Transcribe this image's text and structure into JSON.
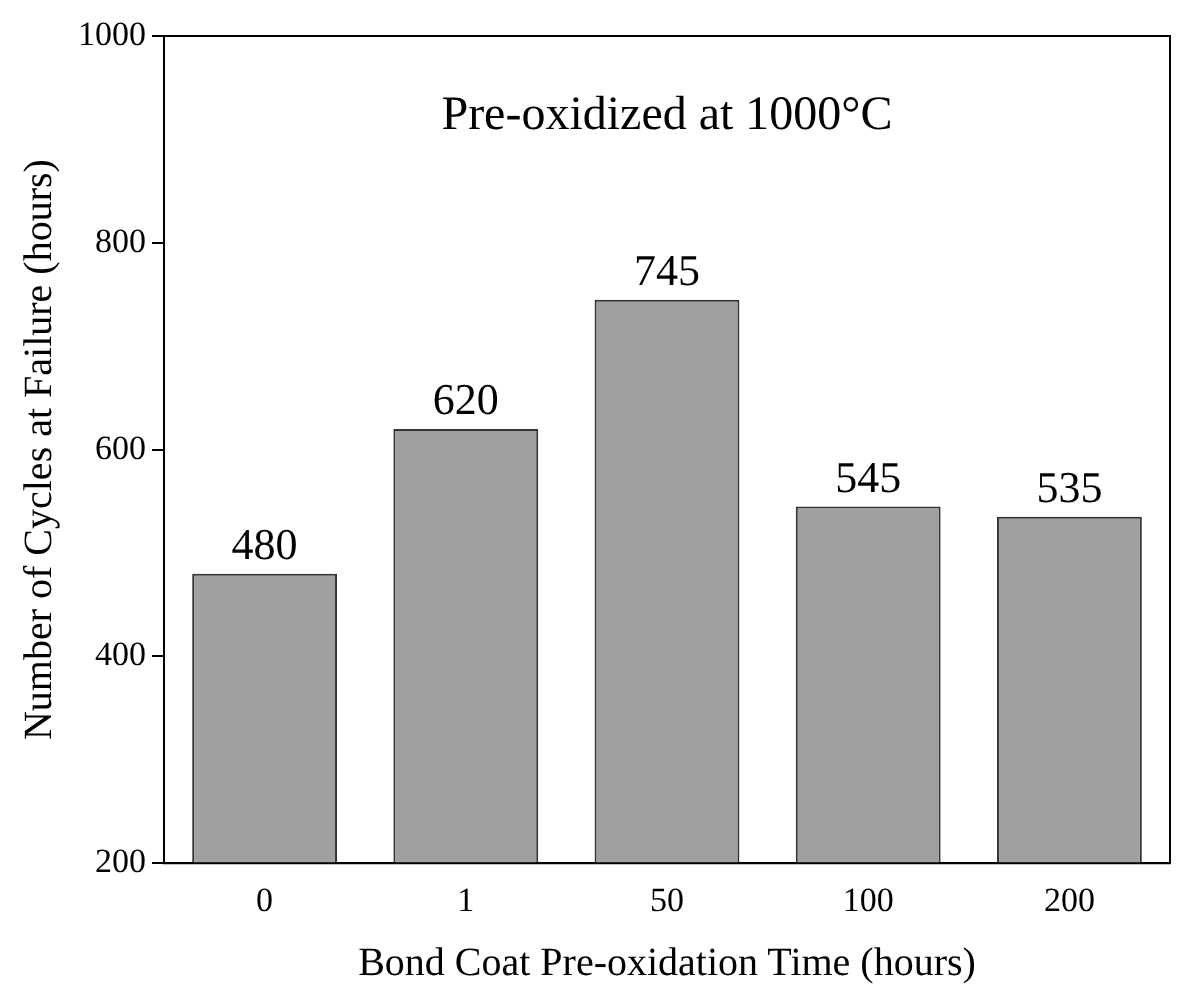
{
  "chart_data": {
    "type": "bar",
    "title": "Pre-oxidized at 1000°C",
    "xlabel": "Bond Coat Pre-oxidation Time (hours)",
    "ylabel": "Number of Cycles at Failure (hours)",
    "categories": [
      "0",
      "1",
      "50",
      "100",
      "200"
    ],
    "values": [
      480,
      620,
      745,
      545,
      535
    ],
    "color": "#a0a0a0",
    "ylim": [
      200,
      1000
    ],
    "yticks": [
      200,
      400,
      600,
      800,
      1000
    ],
    "grid": false,
    "legend": false,
    "data_labels": true
  }
}
